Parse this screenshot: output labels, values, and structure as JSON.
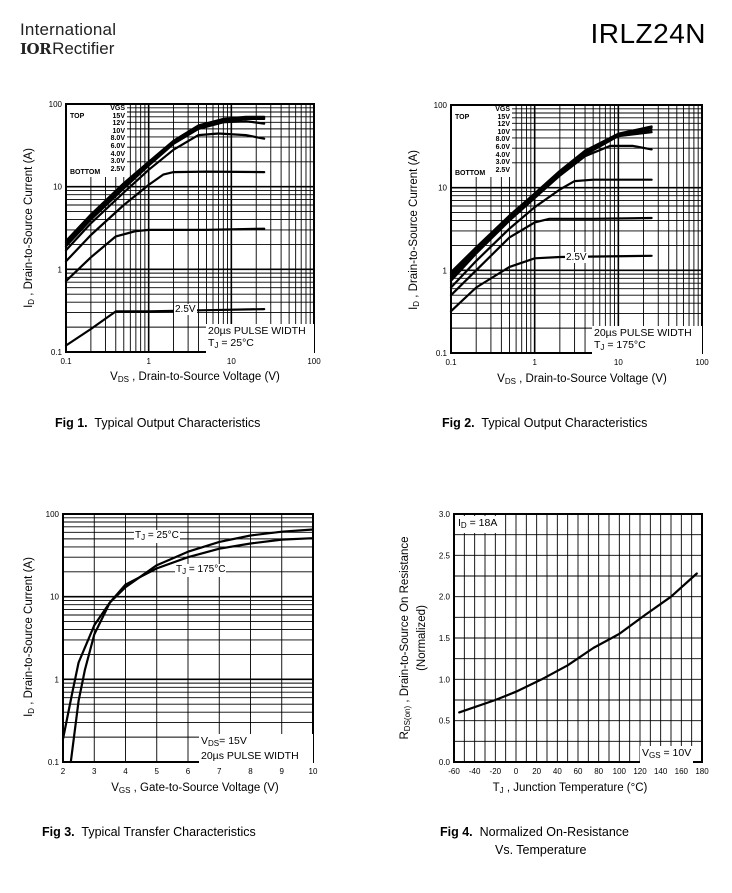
{
  "header": {
    "logo_line1": "International",
    "logo_mark": "IOR",
    "logo_line2": "Rectifier",
    "part_number": "IRLZ24N"
  },
  "captions": [
    {
      "fig": "Fig 1.",
      "text": "Typical Output Characteristics"
    },
    {
      "fig": "Fig 2.",
      "text": "Typical Output Characteristics"
    },
    {
      "fig": "Fig 3.",
      "text": "Typical Transfer Characteristics"
    },
    {
      "fig": "Fig 4.",
      "text": "Normalized On-Resistance",
      "text2": "Vs. Temperature"
    }
  ],
  "chart_data": [
    {
      "type": "line",
      "title": "Typical Output Characteristics",
      "xlabel": {
        "main": "V",
        "sub": "DS",
        "rest": " , Drain-to-Source Voltage (V)"
      },
      "ylabel": {
        "main": "I",
        "sub": "D",
        "rest": " , Drain-to-Source Current (A)"
      },
      "xscale": "log",
      "yscale": "log",
      "xlim": [
        0.1,
        100
      ],
      "ylim": [
        0.1,
        100
      ],
      "xticks": [
        "0.1",
        "1",
        "10",
        "100"
      ],
      "yticks": [
        "0.1",
        "1",
        "10",
        "100"
      ],
      "grid": true,
      "legend": {
        "header": "VGS",
        "top_label": "TOP",
        "bottom_label": "BOTTOM",
        "entries": [
          "15V",
          "12V",
          "10V",
          "8.0V",
          "6.0V",
          "4.0V",
          "3.0V",
          "2.5V"
        ],
        "placement": "top-left"
      },
      "annotations": {
        "pulse": "20µs PULSE WIDTH",
        "temp_main": "T",
        "temp_sub": "J",
        "temp_rest": " = 25°C",
        "curve_label": "2.5V"
      },
      "series": [
        {
          "name": "15V",
          "points": [
            [
              0.1,
              2.2
            ],
            [
              0.2,
              4.6
            ],
            [
              0.5,
              11
            ],
            [
              1,
              20
            ],
            [
              2,
              36
            ],
            [
              4,
              55
            ],
            [
              8,
              66
            ],
            [
              15,
              70
            ],
            [
              25,
              70
            ]
          ]
        },
        {
          "name": "12V",
          "points": [
            [
              0.1,
              2.1
            ],
            [
              0.2,
              4.4
            ],
            [
              0.5,
              10.5
            ],
            [
              1,
              19
            ],
            [
              2,
              35
            ],
            [
              4,
              53
            ],
            [
              8,
              64
            ],
            [
              15,
              68
            ],
            [
              25,
              68
            ]
          ]
        },
        {
          "name": "10V",
          "points": [
            [
              0.1,
              2.0
            ],
            [
              0.2,
              4.2
            ],
            [
              0.5,
              10
            ],
            [
              1,
              18.5
            ],
            [
              2,
              34
            ],
            [
              4,
              52
            ],
            [
              8,
              62
            ],
            [
              15,
              66
            ],
            [
              25,
              66
            ]
          ]
        },
        {
          "name": "8.0V",
          "points": [
            [
              0.1,
              1.9
            ],
            [
              0.2,
              4.0
            ],
            [
              0.5,
              9.5
            ],
            [
              1,
              18
            ],
            [
              2,
              33
            ],
            [
              4,
              50
            ],
            [
              8,
              60
            ],
            [
              15,
              62
            ],
            [
              25,
              58
            ]
          ]
        },
        {
          "name": "6.0V",
          "points": [
            [
              0.1,
              1.7
            ],
            [
              0.2,
              3.6
            ],
            [
              0.5,
              8.5
            ],
            [
              1,
              16
            ],
            [
              2,
              28
            ],
            [
              4,
              42
            ],
            [
              7,
              44
            ],
            [
              15,
              42
            ],
            [
              25,
              38
            ]
          ]
        },
        {
          "name": "4.0V",
          "points": [
            [
              0.1,
              1.25
            ],
            [
              0.2,
              2.6
            ],
            [
              0.5,
              6
            ],
            [
              1,
              10.5
            ],
            [
              1.5,
              14
            ],
            [
              2,
              15
            ],
            [
              5,
              15.2
            ],
            [
              25,
              15
            ]
          ]
        },
        {
          "name": "3.0V",
          "points": [
            [
              0.1,
              0.72
            ],
            [
              0.2,
              1.4
            ],
            [
              0.4,
              2.5
            ],
            [
              0.7,
              2.9
            ],
            [
              1,
              3
            ],
            [
              5,
              3
            ],
            [
              25,
              3.1
            ]
          ]
        },
        {
          "name": "2.5V",
          "points": [
            [
              0.1,
              0.12
            ],
            [
              0.2,
              0.19
            ],
            [
              0.4,
              0.31
            ],
            [
              1,
              0.31
            ],
            [
              5,
              0.32
            ],
            [
              25,
              0.33
            ]
          ]
        }
      ]
    },
    {
      "type": "line",
      "title": "Typical Output Characteristics",
      "xlabel": {
        "main": "V",
        "sub": "DS",
        "rest": " , Drain-to-Source Voltage (V)"
      },
      "ylabel": {
        "main": "I",
        "sub": "D",
        "rest": " , Drain-to-Source Current (A)"
      },
      "xscale": "log",
      "yscale": "log",
      "xlim": [
        0.1,
        100
      ],
      "ylim": [
        0.1,
        100
      ],
      "xticks": [
        "0.1",
        "1",
        "10",
        "100"
      ],
      "yticks": [
        "0.1",
        "1",
        "10",
        "100"
      ],
      "grid": true,
      "legend": {
        "header": "VGS",
        "top_label": "TOP",
        "bottom_label": "BOTTOM",
        "entries": [
          "15V",
          "12V",
          "10V",
          "8.0V",
          "6.0V",
          "4.0V",
          "3.0V",
          "2.5V"
        ],
        "placement": "top-left"
      },
      "annotations": {
        "pulse": "20µs PULSE WIDTH",
        "temp_main": "T",
        "temp_sub": "J",
        "temp_rest": " = 175°C",
        "curve_label": "2.5V"
      },
      "series": [
        {
          "name": "15V",
          "points": [
            [
              0.1,
              0.95
            ],
            [
              0.2,
              1.9
            ],
            [
              0.5,
              4.6
            ],
            [
              1,
              8.5
            ],
            [
              2,
              16
            ],
            [
              4,
              28
            ],
            [
              10,
              45
            ],
            [
              25,
              55
            ]
          ]
        },
        {
          "name": "12V",
          "points": [
            [
              0.1,
              0.9
            ],
            [
              0.2,
              1.85
            ],
            [
              0.5,
              4.5
            ],
            [
              1,
              8.3
            ],
            [
              2,
              15.5
            ],
            [
              4,
              27
            ],
            [
              10,
              44
            ],
            [
              25,
              53
            ]
          ]
        },
        {
          "name": "10V",
          "points": [
            [
              0.1,
              0.85
            ],
            [
              0.2,
              1.8
            ],
            [
              0.5,
              4.4
            ],
            [
              1,
              8.1
            ],
            [
              2,
              15
            ],
            [
              4,
              26
            ],
            [
              10,
              43
            ],
            [
              25,
              50
            ]
          ]
        },
        {
          "name": "8.0V",
          "points": [
            [
              0.1,
              0.8
            ],
            [
              0.2,
              1.7
            ],
            [
              0.5,
              4.2
            ],
            [
              1,
              7.8
            ],
            [
              2,
              14.5
            ],
            [
              4,
              25
            ],
            [
              10,
              42
            ],
            [
              25,
              47
            ]
          ]
        },
        {
          "name": "6.0V",
          "points": [
            [
              0.1,
              0.75
            ],
            [
              0.2,
              1.6
            ],
            [
              0.5,
              4
            ],
            [
              1,
              7.5
            ],
            [
              2,
              14
            ],
            [
              4,
              24
            ],
            [
              8,
              32
            ],
            [
              15,
              32
            ],
            [
              25,
              29
            ]
          ]
        },
        {
          "name": "4.0V",
          "points": [
            [
              0.1,
              0.62
            ],
            [
              0.2,
              1.3
            ],
            [
              0.5,
              3.2
            ],
            [
              1,
              5.8
            ],
            [
              2,
              9.5
            ],
            [
              3,
              12
            ],
            [
              5,
              12.5
            ],
            [
              25,
              12.5
            ]
          ]
        },
        {
          "name": "3.0V",
          "points": [
            [
              0.1,
              0.5
            ],
            [
              0.2,
              1.0
            ],
            [
              0.5,
              2.5
            ],
            [
              1,
              3.8
            ],
            [
              1.5,
              4.2
            ],
            [
              5,
              4.2
            ],
            [
              25,
              4.3
            ]
          ]
        },
        {
          "name": "2.5V",
          "points": [
            [
              0.1,
              0.32
            ],
            [
              0.2,
              0.62
            ],
            [
              0.5,
              1.1
            ],
            [
              1,
              1.4
            ],
            [
              2,
              1.45
            ],
            [
              25,
              1.5
            ]
          ]
        }
      ]
    },
    {
      "type": "line",
      "title": "Typical Transfer Characteristics",
      "xlabel": {
        "main": "V",
        "sub": "GS",
        "rest": " , Gate-to-Source Voltage (V)"
      },
      "ylabel": {
        "main": "I",
        "sub": "D",
        "rest": " , Drain-to-Source Current (A)"
      },
      "xscale": "linear",
      "yscale": "log",
      "xlim": [
        2,
        10
      ],
      "ylim": [
        0.1,
        100
      ],
      "xticks": [
        "2",
        "3",
        "4",
        "5",
        "6",
        "7",
        "8",
        "9",
        "10"
      ],
      "yticks": [
        "0.1",
        "1",
        "10",
        "100"
      ],
      "grid": true,
      "annotations": {
        "vds_main": "V",
        "vds_sub": "DS",
        "vds_rest": "= 15V",
        "pulse": "20µs PULSE WIDTH"
      },
      "series": [
        {
          "name": "TJ = 25°C",
          "label_main": "T",
          "label_sub": "J",
          "label_rest": " = 25°C",
          "points": [
            [
              2,
              0.19
            ],
            [
              2.3,
              0.7
            ],
            [
              2.5,
              1.6
            ],
            [
              3,
              4.5
            ],
            [
              3.5,
              8.5
            ],
            [
              4,
              13
            ],
            [
              5,
              24
            ],
            [
              6,
              35
            ],
            [
              7,
              46
            ],
            [
              8,
              55
            ],
            [
              9,
              61
            ],
            [
              10,
              65
            ]
          ]
        },
        {
          "name": "TJ = 175°C",
          "label_main": "T",
          "label_sub": "J",
          "label_rest": " = 175°C",
          "points": [
            [
              2.25,
              0.1
            ],
            [
              2.5,
              0.55
            ],
            [
              2.7,
              1.3
            ],
            [
              3,
              3.5
            ],
            [
              3.5,
              8.5
            ],
            [
              4,
              14
            ],
            [
              5,
              22
            ],
            [
              6,
              30
            ],
            [
              7,
              38
            ],
            [
              8,
              44
            ],
            [
              9,
              49
            ],
            [
              10,
              51
            ]
          ]
        }
      ]
    },
    {
      "type": "line",
      "title": "Normalized On-Resistance Vs. Temperature",
      "xlabel": {
        "main": "T",
        "sub": "J",
        "rest": " , Junction Temperature (°C)"
      },
      "ylabel": {
        "main": "R",
        "sub": "DS(on)",
        "rest": " ,   Drain-to-Source On Resistance",
        "line2": "(Normalized)"
      },
      "xscale": "linear",
      "yscale": "linear",
      "xlim": [
        -60,
        180
      ],
      "ylim": [
        0,
        3
      ],
      "xticks": [
        "-60",
        "-40",
        "-20",
        "0",
        "20",
        "40",
        "60",
        "80",
        "100",
        "120",
        "140",
        "160",
        "180"
      ],
      "yticks": [
        "0.0",
        "0.5",
        "1.0",
        "1.5",
        "2.0",
        "2.5",
        "3.0"
      ],
      "grid": true,
      "annotations": {
        "id_main": "I",
        "id_sub": "D",
        "id_rest": " = 18A",
        "vgs_main": "V",
        "vgs_sub": "GS",
        "vgs_rest": " = 10V"
      },
      "series": [
        {
          "name": "RDS(on)",
          "points": [
            [
              -55,
              0.6
            ],
            [
              -20,
              0.75
            ],
            [
              0,
              0.85
            ],
            [
              25,
              1.0
            ],
            [
              50,
              1.17
            ],
            [
              75,
              1.38
            ],
            [
              100,
              1.55
            ],
            [
              125,
              1.78
            ],
            [
              150,
              2.0
            ],
            [
              175,
              2.28
            ]
          ]
        }
      ]
    }
  ]
}
